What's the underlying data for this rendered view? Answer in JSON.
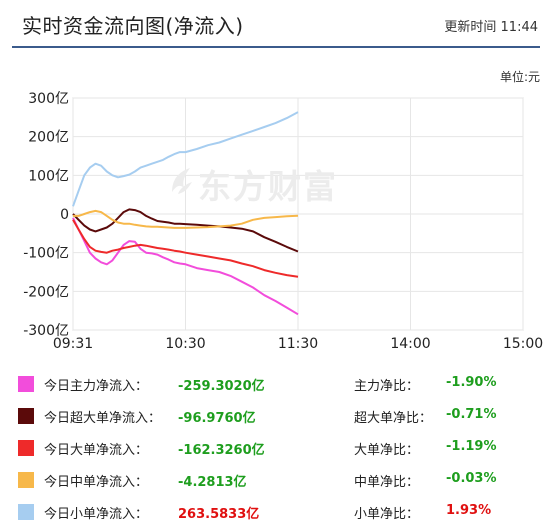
{
  "header": {
    "title": "实时资金流向图(净流入)",
    "updated": "更新时间 11:44"
  },
  "unit_label": "单位:元",
  "watermark": {
    "text": "东方财富"
  },
  "chart_data": {
    "type": "line",
    "xlabel": "",
    "ylabel": "",
    "ylim": [
      -300,
      300
    ],
    "y_ticks": [
      "300亿",
      "200亿",
      "100亿",
      "0",
      "-100亿",
      "-200亿",
      "-300亿"
    ],
    "y_tick_values": [
      300,
      200,
      100,
      0,
      -100,
      -200,
      -300
    ],
    "x_ticks": [
      "09:31",
      "10:30",
      "11:30",
      "14:00",
      "15:00"
    ],
    "x_tick_values": [
      0,
      1,
      2,
      3,
      4
    ],
    "grid": true,
    "series": [
      {
        "key": "main",
        "color": "#f24ddb",
        "x": [
          0,
          0.05,
          0.1,
          0.15,
          0.2,
          0.25,
          0.3,
          0.35,
          0.4,
          0.45,
          0.5,
          0.55,
          0.6,
          0.65,
          0.7,
          0.75,
          0.8,
          0.85,
          0.9,
          0.95,
          1.0,
          1.1,
          1.2,
          1.3,
          1.4,
          1.5,
          1.6,
          1.7,
          1.8,
          1.9,
          2.0
        ],
        "y": [
          -10,
          -40,
          -70,
          -100,
          -115,
          -125,
          -130,
          -120,
          -100,
          -80,
          -70,
          -72,
          -90,
          -100,
          -102,
          -105,
          -112,
          -118,
          -125,
          -128,
          -130,
          -140,
          -145,
          -150,
          -160,
          -175,
          -190,
          -210,
          -225,
          -242,
          -259.3
        ]
      },
      {
        "key": "super",
        "color": "#5b0a0a",
        "x": [
          0,
          0.05,
          0.1,
          0.15,
          0.2,
          0.25,
          0.3,
          0.35,
          0.4,
          0.45,
          0.5,
          0.55,
          0.6,
          0.65,
          0.7,
          0.75,
          0.8,
          0.85,
          0.9,
          0.95,
          1.0,
          1.1,
          1.2,
          1.3,
          1.4,
          1.5,
          1.6,
          1.7,
          1.8,
          1.9,
          2.0
        ],
        "y": [
          0,
          -15,
          -30,
          -40,
          -45,
          -40,
          -35,
          -25,
          -10,
          5,
          12,
          10,
          5,
          -5,
          -12,
          -18,
          -20,
          -22,
          -25,
          -25,
          -26,
          -28,
          -30,
          -32,
          -35,
          -38,
          -45,
          -60,
          -72,
          -85,
          -97
        ]
      },
      {
        "key": "big",
        "color": "#ee2a2a",
        "x": [
          0,
          0.05,
          0.1,
          0.15,
          0.2,
          0.25,
          0.3,
          0.35,
          0.4,
          0.45,
          0.5,
          0.55,
          0.6,
          0.65,
          0.7,
          0.75,
          0.8,
          0.85,
          0.9,
          0.95,
          1.0,
          1.1,
          1.2,
          1.3,
          1.4,
          1.5,
          1.6,
          1.7,
          1.8,
          1.9,
          2.0
        ],
        "y": [
          -15,
          -40,
          -65,
          -85,
          -95,
          -98,
          -100,
          -95,
          -92,
          -88,
          -85,
          -82,
          -80,
          -82,
          -85,
          -88,
          -90,
          -92,
          -95,
          -97,
          -100,
          -105,
          -110,
          -115,
          -120,
          -128,
          -135,
          -145,
          -152,
          -158,
          -162.3
        ]
      },
      {
        "key": "medium",
        "color": "#f7b84a",
        "x": [
          0,
          0.05,
          0.1,
          0.15,
          0.2,
          0.25,
          0.3,
          0.35,
          0.4,
          0.45,
          0.5,
          0.55,
          0.6,
          0.65,
          0.7,
          0.75,
          0.8,
          0.85,
          0.9,
          0.95,
          1.0,
          1.1,
          1.2,
          1.3,
          1.4,
          1.5,
          1.6,
          1.7,
          1.8,
          1.9,
          2.0
        ],
        "y": [
          -5,
          -5,
          0,
          5,
          8,
          5,
          -5,
          -15,
          -22,
          -25,
          -25,
          -28,
          -30,
          -32,
          -33,
          -33,
          -34,
          -35,
          -36,
          -36,
          -36,
          -35,
          -34,
          -32,
          -30,
          -25,
          -15,
          -10,
          -8,
          -6,
          -4.3
        ]
      },
      {
        "key": "small",
        "color": "#a6cdf0",
        "x": [
          0,
          0.05,
          0.1,
          0.15,
          0.2,
          0.25,
          0.3,
          0.35,
          0.4,
          0.45,
          0.5,
          0.55,
          0.6,
          0.65,
          0.7,
          0.75,
          0.8,
          0.85,
          0.9,
          0.95,
          1.0,
          1.1,
          1.2,
          1.3,
          1.4,
          1.5,
          1.6,
          1.7,
          1.8,
          1.9,
          2.0
        ],
        "y": [
          20,
          60,
          100,
          120,
          130,
          125,
          110,
          100,
          95,
          98,
          102,
          110,
          120,
          125,
          130,
          135,
          140,
          148,
          155,
          160,
          160,
          168,
          178,
          185,
          195,
          205,
          215,
          225,
          235,
          248,
          263.6
        ]
      }
    ]
  },
  "legend": [
    {
      "key": "main",
      "color": "#f24ddb",
      "label": "今日主力净流入：",
      "value": "-259.3020亿",
      "ratio_label": "主力净比：",
      "ratio_value": "-1.90%",
      "sign": "neg",
      "ratio_sign": "neg"
    },
    {
      "key": "super",
      "color": "#5b0a0a",
      "label": "今日超大单净流入：",
      "value": "-96.9760亿",
      "ratio_label": "超大单净比：",
      "ratio_value": "-0.71%",
      "sign": "neg",
      "ratio_sign": "neg"
    },
    {
      "key": "big",
      "color": "#ee2a2a",
      "label": "今日大单净流入：",
      "value": "-162.3260亿",
      "ratio_label": "大单净比：",
      "ratio_value": "-1.19%",
      "sign": "neg",
      "ratio_sign": "neg"
    },
    {
      "key": "medium",
      "color": "#f7b84a",
      "label": "今日中单净流入：",
      "value": "-4.2813亿",
      "ratio_label": "中单净比：",
      "ratio_value": "-0.03%",
      "sign": "neg",
      "ratio_sign": "neg"
    },
    {
      "key": "small",
      "color": "#a6cdf0",
      "label": "今日小单净流入：",
      "value": "263.5833亿",
      "ratio_label": "小单净比：",
      "ratio_value": "1.93%",
      "sign": "pos",
      "ratio_sign": "pos"
    }
  ]
}
